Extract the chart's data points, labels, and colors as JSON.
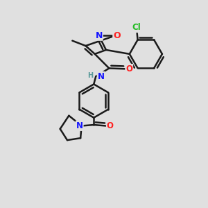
{
  "bg_color": "#e0e0e0",
  "bond_color": "#1a1a1a",
  "bond_width": 1.8,
  "atom_colors": {
    "C": "#1a1a1a",
    "N": "#1515ff",
    "O": "#ff2020",
    "Cl": "#22bb22",
    "H": "#5a9a9a"
  },
  "font_size": 8.5
}
